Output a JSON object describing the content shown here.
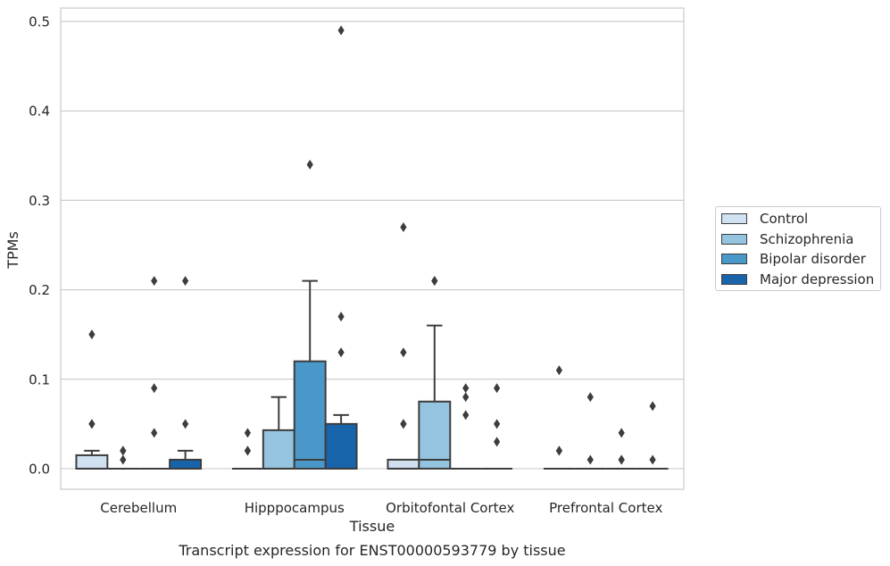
{
  "chart_data": {
    "type": "boxplot",
    "title": "Transcript expression for ENST00000593779 by tissue",
    "xlabel": "Tissue",
    "ylabel": "TPMs",
    "ylim": [
      -0.023,
      0.515
    ],
    "yticks": [
      0.0,
      0.1,
      0.2,
      0.3,
      0.4,
      0.5
    ],
    "ytick_labels": [
      "0.0",
      "0.1",
      "0.2",
      "0.3",
      "0.4",
      "0.5"
    ],
    "grid": true,
    "legend_position": "right",
    "categories": [
      "Cerebellum",
      "Hipppocampus",
      "Orbitofontal Cortex",
      "Prefrontal Cortex"
    ],
    "series": [
      {
        "name": "Control",
        "color": "#d0e1f2",
        "boxes": [
          {
            "q1": 0.0,
            "median": 0.0,
            "q3": 0.015,
            "whisker_low": 0.0,
            "whisker_high": 0.02,
            "outliers": [
              0.05,
              0.05,
              0.15
            ]
          },
          {
            "q1": 0.0,
            "median": 0.0,
            "q3": 0.0,
            "whisker_low": 0.0,
            "whisker_high": 0.0,
            "outliers": [
              0.02,
              0.02,
              0.04
            ]
          },
          {
            "q1": 0.0,
            "median": 0.0,
            "q3": 0.01,
            "whisker_low": 0.0,
            "whisker_high": 0.01,
            "outliers": [
              0.05,
              0.05,
              0.13,
              0.27
            ]
          },
          {
            "q1": 0.0,
            "median": 0.0,
            "q3": 0.0,
            "whisker_low": 0.0,
            "whisker_high": 0.0,
            "outliers": [
              0.02,
              0.02,
              0.11
            ]
          }
        ]
      },
      {
        "name": "Schizophrenia",
        "color": "#94c4df",
        "boxes": [
          {
            "q1": 0.0,
            "median": 0.0,
            "q3": 0.0,
            "whisker_low": 0.0,
            "whisker_high": 0.0,
            "outliers": [
              0.01,
              0.02,
              0.02
            ]
          },
          {
            "q1": 0.0,
            "median": 0.0,
            "q3": 0.043,
            "whisker_low": 0.0,
            "whisker_high": 0.08,
            "outliers": []
          },
          {
            "q1": 0.0,
            "median": 0.01,
            "q3": 0.075,
            "whisker_low": 0.0,
            "whisker_high": 0.16,
            "outliers": [
              0.21,
              0.21
            ]
          },
          {
            "q1": 0.0,
            "median": 0.0,
            "q3": 0.0,
            "whisker_low": 0.0,
            "whisker_high": 0.0,
            "outliers": [
              0.01,
              0.08
            ]
          }
        ]
      },
      {
        "name": "Bipolar disorder",
        "color": "#4a98c9",
        "boxes": [
          {
            "q1": 0.0,
            "median": 0.0,
            "q3": 0.0,
            "whisker_low": 0.0,
            "whisker_high": 0.0,
            "outliers": [
              0.04,
              0.09,
              0.21
            ]
          },
          {
            "q1": 0.0,
            "median": 0.01,
            "q3": 0.12,
            "whisker_low": 0.0,
            "whisker_high": 0.21,
            "outliers": [
              0.34
            ]
          },
          {
            "q1": 0.0,
            "median": 0.0,
            "q3": 0.0,
            "whisker_low": 0.0,
            "whisker_high": 0.0,
            "outliers": [
              0.06,
              0.08,
              0.09
            ]
          },
          {
            "q1": 0.0,
            "median": 0.0,
            "q3": 0.0,
            "whisker_low": 0.0,
            "whisker_high": 0.0,
            "outliers": [
              0.01,
              0.01,
              0.04
            ]
          }
        ]
      },
      {
        "name": "Major depression",
        "color": "#1764ab",
        "boxes": [
          {
            "q1": 0.0,
            "median": 0.0,
            "q3": 0.01,
            "whisker_low": 0.0,
            "whisker_high": 0.02,
            "outliers": [
              0.05,
              0.21
            ]
          },
          {
            "q1": 0.0,
            "median": 0.0,
            "q3": 0.05,
            "whisker_low": 0.0,
            "whisker_high": 0.06,
            "outliers": [
              0.13,
              0.17,
              0.49
            ]
          },
          {
            "q1": 0.0,
            "median": 0.0,
            "q3": 0.0,
            "whisker_low": 0.0,
            "whisker_high": 0.0,
            "outliers": [
              0.03,
              0.05,
              0.09
            ]
          },
          {
            "q1": 0.0,
            "median": 0.0,
            "q3": 0.0,
            "whisker_low": 0.0,
            "whisker_high": 0.0,
            "outliers": [
              0.01,
              0.07
            ]
          }
        ]
      }
    ]
  }
}
